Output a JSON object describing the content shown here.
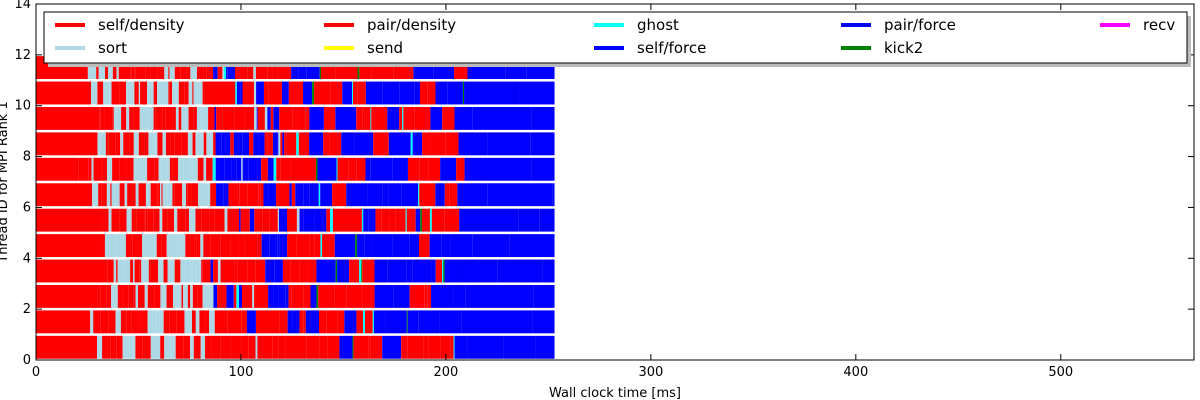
{
  "chart_data": {
    "type": "timeline",
    "xlabel": "Wall clock time [ms]",
    "ylabel": "Thread ID for MPI Rank 1",
    "xlim": [
      0,
      565
    ],
    "ylim": [
      0,
      14
    ],
    "xticks": [
      0,
      100,
      200,
      300,
      400,
      500
    ],
    "yticks": [
      0,
      2,
      4,
      6,
      8,
      10,
      12,
      14
    ],
    "threads": 12,
    "end_time": 253,
    "legend": {
      "placement": "top",
      "columns": 5,
      "entries": [
        {
          "name": "self/density",
          "color": "#ff0000"
        },
        {
          "name": "sort",
          "color": "#add8e6"
        },
        {
          "name": "pair/density",
          "color": "#ff0000"
        },
        {
          "name": "send",
          "color": "#ffff00"
        },
        {
          "name": "ghost",
          "color": "#00ffff"
        },
        {
          "name": "self/force",
          "color": "#0000ff"
        },
        {
          "name": "pair/force",
          "color": "#0000ff"
        },
        {
          "name": "kick2",
          "color": "#008000"
        },
        {
          "name": "recv",
          "color": "#ff00ff"
        }
      ]
    }
  }
}
